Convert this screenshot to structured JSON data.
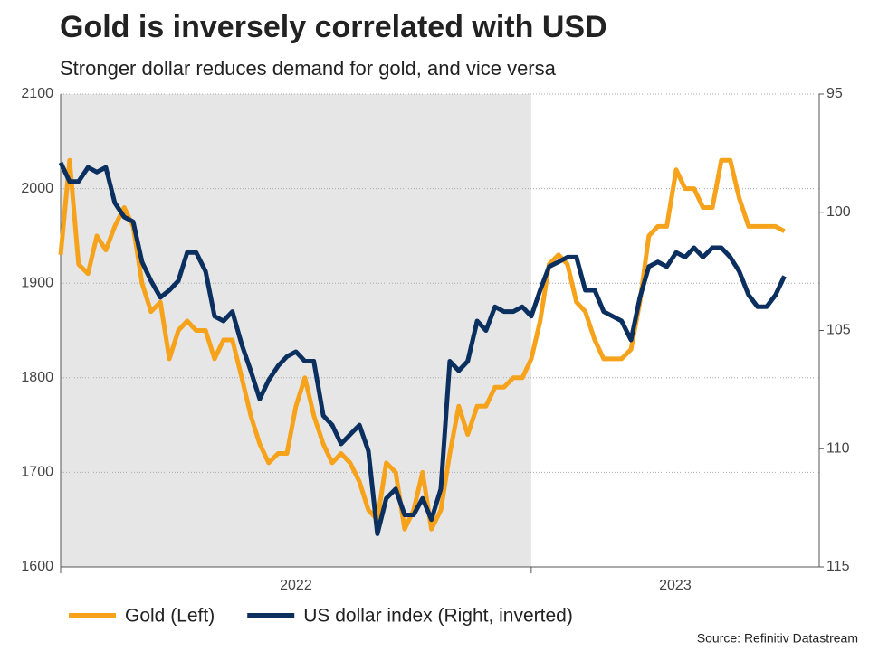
{
  "chart_data": {
    "type": "line",
    "title": "Gold is inversely correlated with USD",
    "subtitle": "Stronger dollar reduces demand for gold, and vice versa",
    "source": "Source: Refinitiv Datastream",
    "x": [
      2022.0,
      2022.019,
      2022.038,
      2022.058,
      2022.077,
      2022.096,
      2022.115,
      2022.135,
      2022.154,
      2022.173,
      2022.192,
      2022.212,
      2022.231,
      2022.25,
      2022.269,
      2022.288,
      2022.308,
      2022.327,
      2022.346,
      2022.365,
      2022.385,
      2022.404,
      2022.423,
      2022.442,
      2022.462,
      2022.481,
      2022.5,
      2022.519,
      2022.538,
      2022.558,
      2022.577,
      2022.596,
      2022.615,
      2022.635,
      2022.654,
      2022.673,
      2022.692,
      2022.712,
      2022.731,
      2022.75,
      2022.769,
      2022.788,
      2022.808,
      2022.827,
      2022.846,
      2022.865,
      2022.885,
      2022.904,
      2022.923,
      2022.942,
      2022.962,
      2022.981,
      2023.0,
      2023.019,
      2023.038,
      2023.058,
      2023.077,
      2023.096,
      2023.115,
      2023.135,
      2023.154,
      2023.173,
      2023.192,
      2023.212,
      2023.231,
      2023.25,
      2023.269,
      2023.288,
      2023.308,
      2023.327,
      2023.346,
      2023.365,
      2023.385,
      2023.404,
      2023.423,
      2023.442,
      2023.462,
      2023.481,
      2023.5,
      2023.519,
      2023.538
    ],
    "series": [
      {
        "name": "Gold (Left)",
        "color": "#f7a21b",
        "axis": "y",
        "values": [
          1930,
          2030,
          1920,
          1910,
          1950,
          1935,
          1960,
          1980,
          1960,
          1900,
          1870,
          1880,
          1820,
          1850,
          1860,
          1850,
          1850,
          1820,
          1840,
          1840,
          1800,
          1760,
          1730,
          1710,
          1720,
          1720,
          1770,
          1800,
          1760,
          1730,
          1710,
          1720,
          1710,
          1690,
          1660,
          1650,
          1710,
          1700,
          1640,
          1660,
          1700,
          1640,
          1660,
          1720,
          1770,
          1740,
          1770,
          1770,
          1790,
          1790,
          1800,
          1800,
          1820,
          1860,
          1920,
          1930,
          1920,
          1880,
          1870,
          1840,
          1820,
          1820,
          1820,
          1830,
          1880,
          1950,
          1960,
          1960,
          2020,
          2000,
          2000,
          1980,
          1980,
          2030,
          2030,
          1990,
          1960,
          1960,
          1960,
          1960,
          1955
        ]
      },
      {
        "name": "US dollar index (Right, inverted)",
        "color": "#0b2f5e",
        "axis": "y2",
        "values": [
          97.9,
          98.7,
          98.7,
          98.1,
          98.3,
          98.1,
          99.6,
          100.2,
          100.4,
          102.1,
          102.9,
          103.6,
          103.3,
          102.9,
          101.7,
          101.7,
          102.5,
          104.4,
          104.6,
          104.2,
          105.6,
          106.7,
          107.9,
          107.1,
          106.5,
          106.1,
          105.9,
          106.3,
          106.3,
          108.6,
          109.0,
          109.8,
          109.4,
          109.0,
          110.1,
          113.6,
          112.1,
          111.7,
          112.8,
          112.8,
          112.1,
          113.0,
          111.7,
          106.3,
          106.7,
          106.3,
          104.6,
          105.0,
          104.0,
          104.2,
          104.2,
          104.0,
          104.4,
          103.3,
          102.3,
          102.1,
          101.9,
          101.9,
          103.3,
          103.3,
          104.2,
          104.4,
          104.6,
          105.4,
          103.6,
          102.3,
          102.1,
          102.3,
          101.7,
          101.9,
          101.5,
          101.9,
          101.5,
          101.5,
          101.9,
          102.5,
          103.5,
          104.0,
          104.0,
          103.5,
          102.7
        ]
      }
    ],
    "xlim": [
      2022,
      2023.612
    ],
    "xticks": [
      2022,
      2023
    ],
    "ylim": [
      1600,
      2100
    ],
    "yticks": [
      1600,
      1700,
      1800,
      1900,
      2000,
      2100
    ],
    "y2lim": [
      115,
      95
    ],
    "y2ticks": [
      95,
      100,
      105,
      110,
      115
    ],
    "grid": true,
    "shade": {
      "from": 2022,
      "to": 2023,
      "color": "#e6e6e6"
    },
    "legend": "bottom"
  }
}
